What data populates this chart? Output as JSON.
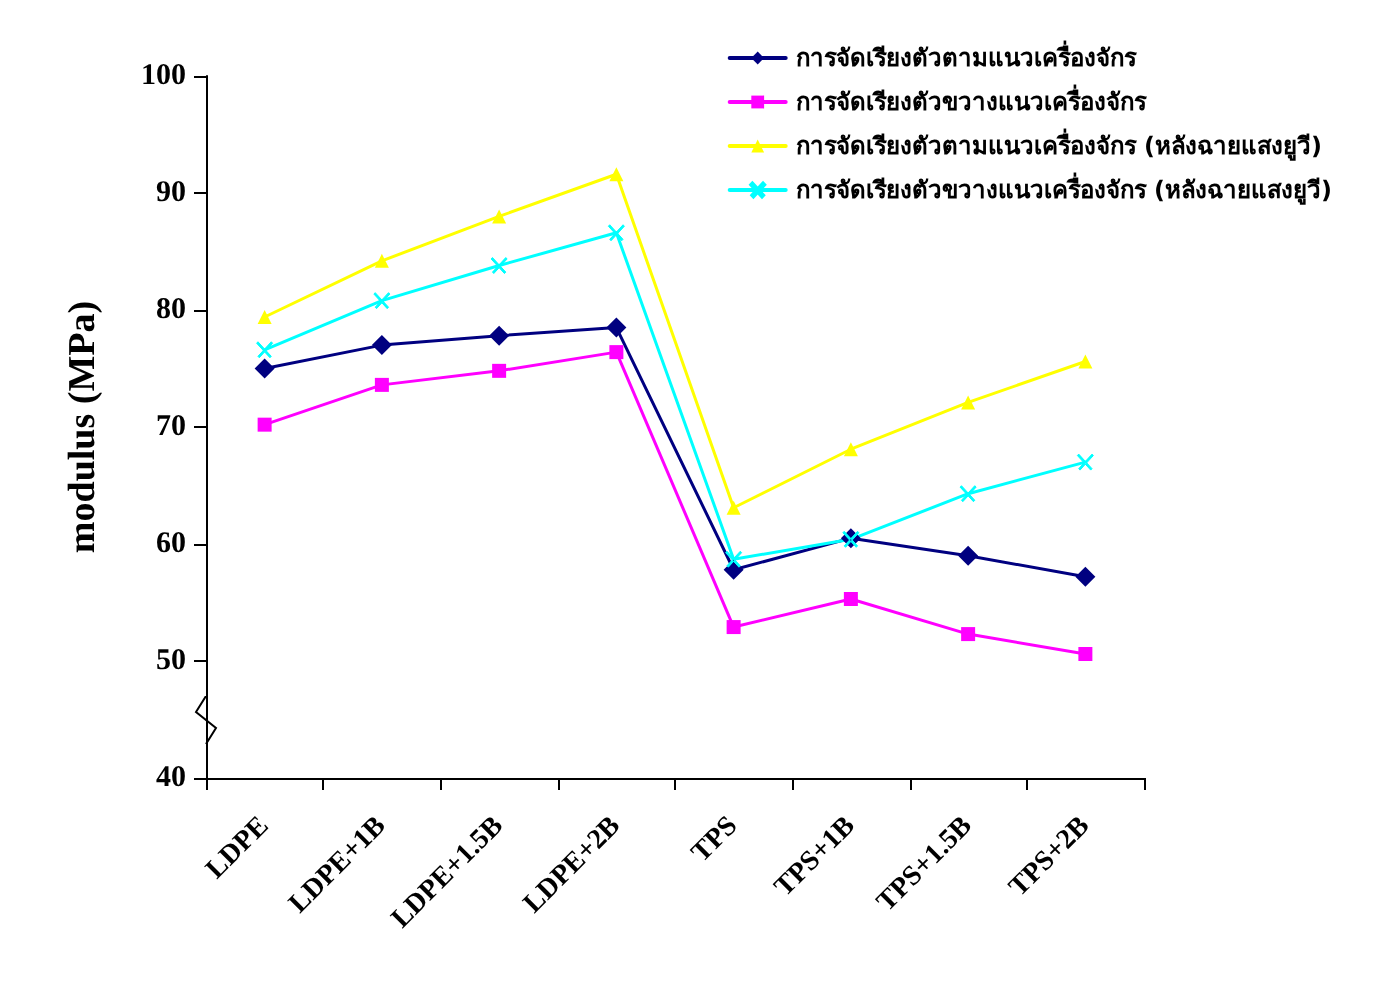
{
  "chart_data": {
    "type": "line",
    "ylabel": "modulus (MPa)",
    "categories": [
      "LDPE",
      "LDPE+1B",
      "LDPE+1.5B",
      "LDPE+2B",
      "TPS",
      "TPS+1B",
      "TPS+1.5B",
      "TPS+2B"
    ],
    "series": [
      {
        "name": "การจัดเรียงตัวตามแนวเครื่องจักร",
        "color": "#000080",
        "marker": "diamond",
        "values": [
          75.0,
          77.0,
          77.8,
          78.5,
          57.8,
          60.5,
          59.0,
          57.2
        ]
      },
      {
        "name": "การจัดเรียงตัวขวางแนวเครื่องจักร",
        "color": "#ff00ff",
        "marker": "square",
        "values": [
          70.2,
          73.6,
          74.8,
          76.4,
          52.9,
          55.3,
          52.3,
          50.6
        ]
      },
      {
        "name": "การจัดเรียงตัวตามแนวเครื่องจักร (หลังฉายแสงยูวี)",
        "color": "#ffff00",
        "marker": "triangle",
        "values": [
          79.4,
          84.2,
          88.0,
          91.6,
          63.1,
          68.1,
          72.1,
          75.6
        ]
      },
      {
        "name": "การจัดเรียงตัวขวางแนวเครื่องจักร (หลังฉายแสงยูวี)",
        "color": "#00ffff",
        "marker": "cross",
        "values": [
          76.6,
          80.8,
          83.8,
          86.6,
          58.7,
          60.4,
          64.3,
          67.0
        ]
      }
    ],
    "ylim": [
      40,
      100
    ],
    "yticks": [
      40,
      50,
      60,
      70,
      80,
      90,
      100
    ],
    "grid": false,
    "legend": "top right",
    "line_style": "solid"
  }
}
